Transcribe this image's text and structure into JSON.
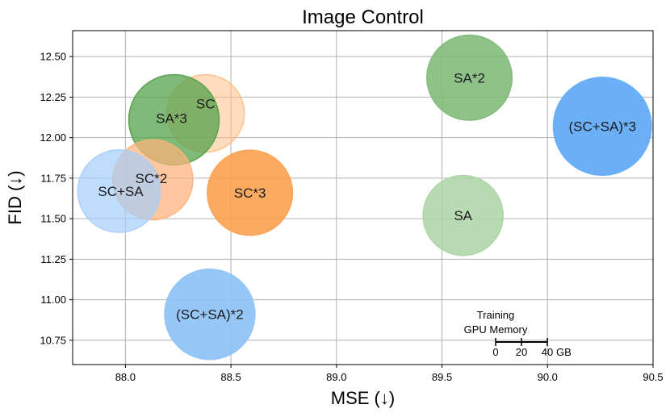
{
  "chart_data": {
    "type": "scatter",
    "subtype": "bubble",
    "title": "Image Control",
    "xlabel": "MSE (↓)",
    "ylabel": "FID (↓)",
    "xlim": [
      87.75,
      90.5
    ],
    "ylim": [
      10.6,
      12.66
    ],
    "xticks": [
      88.0,
      88.5,
      89.0,
      89.5,
      90.0,
      90.5
    ],
    "xtick_labels": [
      "88.0",
      "88.5",
      "89.0",
      "89.5",
      "90.0",
      "90.5"
    ],
    "yticks": [
      10.75,
      11.0,
      11.25,
      11.5,
      11.75,
      12.0,
      12.25,
      12.5
    ],
    "ytick_labels": [
      "10.75",
      "11.00",
      "11.25",
      "11.50",
      "11.75",
      "12.00",
      "12.25",
      "12.50"
    ],
    "grid": true,
    "points": [
      {
        "label": "SC",
        "x": 88.38,
        "y": 12.15,
        "memory_gb": 30,
        "color": "#fdbf87",
        "opacity": 0.55
      },
      {
        "label": "SA*3",
        "x": 88.23,
        "y": 12.11,
        "memory_gb": 35,
        "color": "#4f9f45",
        "opacity": 0.72
      },
      {
        "label": "SC*2",
        "x": 88.13,
        "y": 11.74,
        "memory_gb": 31,
        "color": "#fdb27a",
        "opacity": 0.72
      },
      {
        "label": "SC+SA",
        "x": 87.97,
        "y": 11.67,
        "memory_gb": 32,
        "color": "#a6cef9",
        "opacity": 0.72
      },
      {
        "label": "SC*3",
        "x": 88.59,
        "y": 11.66,
        "memory_gb": 33,
        "color": "#fb9e4c",
        "opacity": 0.88
      },
      {
        "label": "(SC+SA)*2",
        "x": 88.4,
        "y": 10.91,
        "memory_gb": 35,
        "color": "#8ec2f6",
        "opacity": 0.92
      },
      {
        "label": "SA*2",
        "x": 89.63,
        "y": 12.37,
        "memory_gb": 33,
        "color": "#7fb978",
        "opacity": 0.88
      },
      {
        "label": "SA",
        "x": 89.6,
        "y": 11.52,
        "memory_gb": 31,
        "color": "#acd3a5",
        "opacity": 0.85
      },
      {
        "label": "(SC+SA)*3",
        "x": 90.26,
        "y": 12.07,
        "memory_gb": 38,
        "color": "#63acf6",
        "opacity": 0.95
      }
    ],
    "size_legend": {
      "title_line1": "Training",
      "title_line2": "GPU Memory",
      "ticks": [
        0,
        20,
        40
      ],
      "tick_labels": [
        "0",
        "20",
        "40"
      ],
      "unit": "GB"
    }
  }
}
